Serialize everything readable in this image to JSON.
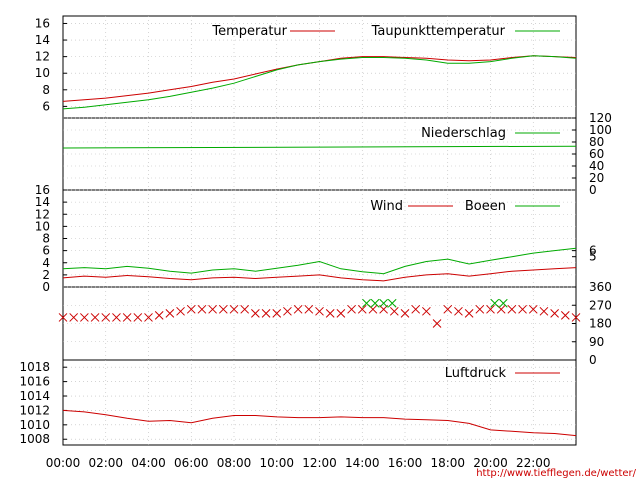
{
  "chart_data": [
    {
      "type": "line",
      "id": "temp",
      "y_ticks": [
        6,
        8,
        10,
        12,
        14,
        16
      ],
      "ylim": [
        4.6,
        16.9
      ],
      "legend_position": "top-right",
      "grid": true,
      "series": [
        {
          "name": "Temperatur",
          "color": "#cc0000",
          "x": [
            0,
            1,
            2,
            3,
            4,
            5,
            6,
            7,
            8,
            9,
            10,
            11,
            12,
            13,
            14,
            15,
            16,
            17,
            18,
            19,
            20,
            21,
            22,
            23,
            24
          ],
          "values": [
            6.6,
            6.8,
            7.0,
            7.3,
            7.6,
            8.0,
            8.4,
            8.9,
            9.3,
            9.9,
            10.5,
            11.0,
            11.4,
            11.8,
            12.0,
            12.0,
            11.9,
            11.8,
            11.6,
            11.5,
            11.6,
            11.9,
            12.1,
            12.0,
            11.9
          ]
        },
        {
          "name": "Taupunkttemperatur",
          "color": "#00aa00",
          "x": [
            0,
            1,
            2,
            3,
            4,
            5,
            6,
            7,
            8,
            9,
            10,
            11,
            12,
            13,
            14,
            15,
            16,
            17,
            18,
            19,
            20,
            21,
            22,
            23,
            24
          ],
          "values": [
            5.7,
            5.9,
            6.2,
            6.5,
            6.8,
            7.2,
            7.7,
            8.2,
            8.8,
            9.6,
            10.4,
            11.0,
            11.4,
            11.7,
            11.9,
            11.9,
            11.8,
            11.6,
            11.2,
            11.2,
            11.4,
            11.8,
            12.1,
            12.0,
            11.8
          ]
        }
      ]
    },
    {
      "type": "line",
      "id": "rain",
      "y_ticks_right": [
        0,
        20,
        40,
        60,
        80,
        100,
        120
      ],
      "ylim": [
        0,
        120
      ],
      "legend_position": "top-right",
      "grid": true,
      "series": [
        {
          "name": "Niederschlag",
          "color": "#00aa00",
          "x": [
            0,
            24
          ],
          "values": [
            70,
            73
          ]
        }
      ]
    },
    {
      "type": "line",
      "id": "wind",
      "y_ticks": [
        0,
        2,
        4,
        6,
        8,
        10,
        12,
        14,
        16
      ],
      "y_ticks_right": [
        5,
        6
      ],
      "ylim": [
        0,
        16
      ],
      "legend_position": "top-right",
      "grid": true,
      "series": [
        {
          "name": "Wind",
          "color": "#cc0000",
          "x": [
            0,
            1,
            2,
            3,
            4,
            5,
            6,
            7,
            8,
            9,
            10,
            11,
            12,
            13,
            14,
            15,
            16,
            17,
            18,
            19,
            20,
            21,
            22,
            23,
            24
          ],
          "values": [
            1.5,
            1.8,
            1.6,
            1.9,
            1.7,
            1.4,
            1.2,
            1.5,
            1.6,
            1.4,
            1.6,
            1.8,
            2.0,
            1.5,
            1.2,
            1.0,
            1.6,
            2.0,
            2.2,
            1.8,
            2.2,
            2.6,
            2.8,
            3.0,
            3.2
          ]
        },
        {
          "name": "Boeen",
          "color": "#00aa00",
          "x": [
            0,
            1,
            2,
            3,
            4,
            5,
            6,
            7,
            8,
            9,
            10,
            11,
            12,
            13,
            14,
            15,
            16,
            17,
            18,
            19,
            20,
            21,
            22,
            23,
            24
          ],
          "values": [
            3.0,
            3.2,
            3.0,
            3.4,
            3.1,
            2.6,
            2.3,
            2.8,
            3.0,
            2.6,
            3.1,
            3.6,
            4.2,
            3.0,
            2.5,
            2.2,
            3.4,
            4.2,
            4.6,
            3.8,
            4.4,
            5.0,
            5.6,
            6.0,
            6.4
          ]
        }
      ]
    },
    {
      "type": "scatter",
      "id": "direction",
      "y_ticks_right": [
        0,
        90,
        180,
        270,
        360
      ],
      "ylim": [
        0,
        360
      ],
      "marker": "x",
      "series": [
        {
          "color": "#cc0000",
          "x": [
            0,
            0.5,
            1,
            1.5,
            2,
            2.5,
            3,
            3.5,
            4,
            4.5,
            5,
            5.5,
            6,
            6.5,
            7,
            7.5,
            8,
            8.5,
            9,
            9.5,
            10,
            10.5,
            11,
            11.5,
            12,
            12.5,
            13,
            13.5,
            14,
            14.5,
            15,
            15.5,
            16,
            16.5,
            17,
            17.5,
            18,
            18.5,
            19,
            19.5,
            20,
            20.5,
            21,
            21.5,
            22,
            22.5,
            23,
            23.5,
            24
          ],
          "values": [
            210,
            210,
            210,
            210,
            210,
            210,
            210,
            210,
            210,
            220,
            230,
            240,
            250,
            250,
            250,
            250,
            250,
            250,
            230,
            230,
            230,
            240,
            250,
            250,
            240,
            230,
            230,
            250,
            250,
            250,
            250,
            240,
            230,
            250,
            240,
            180,
            250,
            240,
            230,
            250,
            250,
            250,
            250,
            250,
            250,
            240,
            230,
            220,
            210
          ]
        },
        {
          "color": "#00aa00",
          "x": [
            14.2,
            14.6,
            15.0,
            15.4,
            20.2,
            20.6
          ],
          "values": [
            280,
            280,
            280,
            280,
            280,
            280
          ]
        }
      ]
    },
    {
      "type": "line",
      "id": "pressure",
      "y_ticks": [
        1008,
        1010,
        1012,
        1014,
        1016,
        1018
      ],
      "ylim": [
        1007.2,
        1019
      ],
      "legend_position": "top-right",
      "grid": true,
      "series": [
        {
          "name": "Luftdruck",
          "color": "#cc0000",
          "x": [
            0,
            1,
            2,
            3,
            4,
            5,
            6,
            7,
            8,
            9,
            10,
            11,
            12,
            13,
            14,
            15,
            16,
            17,
            18,
            19,
            20,
            21,
            22,
            23,
            24
          ],
          "values": [
            1012.0,
            1011.8,
            1011.4,
            1010.9,
            1010.5,
            1010.6,
            1010.3,
            1010.9,
            1011.3,
            1011.3,
            1011.1,
            1011.0,
            1011.0,
            1011.1,
            1011.0,
            1011.0,
            1010.8,
            1010.7,
            1010.6,
            1010.2,
            1009.3,
            1009.1,
            1008.9,
            1008.8,
            1008.5
          ]
        }
      ]
    }
  ],
  "x_axis": {
    "ticks": [
      "00:00",
      "02:00",
      "04:00",
      "06:00",
      "08:00",
      "10:00",
      "12:00",
      "14:00",
      "16:00",
      "18:00",
      "20:00",
      "22:00"
    ],
    "xlim": [
      0,
      24
    ]
  },
  "footer": {
    "url": "http://www.tiefflegen.de/wetter/"
  }
}
